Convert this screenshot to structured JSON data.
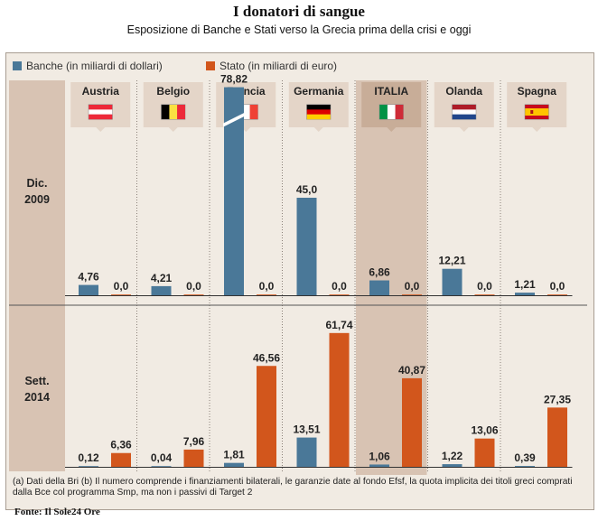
{
  "header": {
    "title": "I donatori di sangue",
    "subtitle": "Esposizione di Banche e Stati verso la Grecia prima della crisi e oggi"
  },
  "legend": {
    "banks": "Banche (in miliardi di dollari)",
    "state": "Stato (in miliardi di euro)"
  },
  "colors": {
    "banks": "#4a7898",
    "state": "#d2561c",
    "highlight": "#d8c3b3",
    "row_label_bg": "#d8c3b3"
  },
  "chart_data": {
    "type": "bar",
    "categories": [
      "Austria",
      "Belgio",
      "Francia",
      "Germania",
      "ITALIA",
      "Olanda",
      "Spagna"
    ],
    "highlight": "ITALIA",
    "periods": [
      {
        "label": "Dic.\n2009",
        "series": [
          {
            "name": "Banche (in miliardi di dollari)",
            "values": [
              4.76,
              4.21,
              78.82,
              45.0,
              6.86,
              12.21,
              1.21
            ],
            "labels": [
              "4,76",
              "4,21",
              "78,82",
              "45,0",
              "6,86",
              "12,21",
              "1,21"
            ],
            "broken": [
              false,
              false,
              true,
              false,
              false,
              false,
              false
            ]
          },
          {
            "name": "Stato (in miliardi di euro)",
            "values": [
              0,
              0,
              0,
              0,
              0,
              0,
              0
            ],
            "labels": [
              "0,0",
              "0,0",
              "0,0",
              "0,0",
              "0,0",
              "0,0",
              "0,0"
            ]
          }
        ]
      },
      {
        "label": "Sett.\n2014",
        "series": [
          {
            "name": "Banche (in miliardi di dollari)",
            "values": [
              0.12,
              0.04,
              1.81,
              13.51,
              1.06,
              1.22,
              0.39
            ],
            "labels": [
              "0,12",
              "0,04",
              "1,81",
              "13,51",
              "1,06",
              "1,22",
              "0,39"
            ]
          },
          {
            "name": "Stato (in miliardi di euro)",
            "values": [
              6.36,
              7.96,
              46.56,
              61.74,
              40.87,
              13.06,
              27.35
            ],
            "labels": [
              "6,36",
              "7,96",
              "46,56",
              "61,74",
              "40,87",
              "13,06",
              "27,35"
            ]
          }
        ]
      }
    ]
  },
  "flags": [
    {
      "country": "Austria",
      "icon": "austria-flag-icon",
      "stripes": "h",
      "colors": [
        "#ed2939",
        "#ffffff",
        "#ed2939"
      ]
    },
    {
      "country": "Belgio",
      "icon": "belgium-flag-icon",
      "stripes": "v",
      "colors": [
        "#000000",
        "#fae042",
        "#ed2939"
      ]
    },
    {
      "country": "Francia",
      "icon": "france-flag-icon",
      "stripes": "v",
      "colors": [
        "#0055a4",
        "#ffffff",
        "#ef4135"
      ]
    },
    {
      "country": "Germania",
      "icon": "germany-flag-icon",
      "stripes": "h",
      "colors": [
        "#000000",
        "#dd0000",
        "#ffce00"
      ]
    },
    {
      "country": "ITALIA",
      "icon": "italy-flag-icon",
      "stripes": "v",
      "colors": [
        "#009246",
        "#ffffff",
        "#ce2b37"
      ]
    },
    {
      "country": "Olanda",
      "icon": "netherlands-flag-icon",
      "stripes": "h",
      "colors": [
        "#ae1c28",
        "#ffffff",
        "#21468b"
      ]
    },
    {
      "country": "Spagna",
      "icon": "spain-flag-icon",
      "stripes": "h3",
      "colors": [
        "#c60b1e",
        "#ffc400",
        "#c60b1e"
      ]
    }
  ],
  "footnote": "(a) Dati della Bri (b) Il numero comprende i finanziamenti bilaterali, le garanzie date al fondo Efsf, la quota implicita dei titoli greci comprati dalla Bce col programma Smp, ma non i passivi di Target 2",
  "source": "Fonte: Il Sole24 Ore"
}
